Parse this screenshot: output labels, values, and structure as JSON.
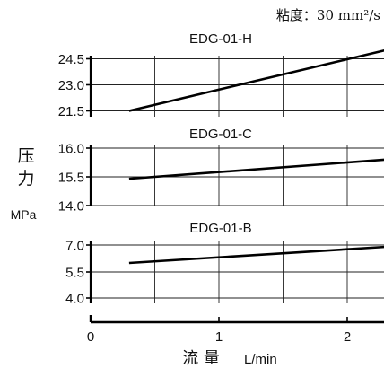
{
  "viscosity_note": "粘度：30 mm²/s",
  "y_axis_label": {
    "text": "压力",
    "unit": "MPa"
  },
  "x_axis_label": {
    "text": "流  量",
    "unit": "L/min"
  },
  "x_ticks": [
    "0",
    "1",
    "2"
  ],
  "chart_data": [
    {
      "type": "line",
      "title": "EDG-01-H",
      "ylim": [
        21.5,
        25.0
      ],
      "yticks": [
        21.5,
        23.0,
        24.5
      ],
      "ytick_labels": [
        "21.5",
        "23.0",
        "24.5"
      ],
      "xlim": [
        0,
        2.3
      ],
      "grid": true,
      "series": [
        {
          "x": [
            0.3,
            2.3
          ],
          "y": [
            21.5,
            25.0
          ]
        }
      ]
    },
    {
      "type": "line",
      "title": "EDG-01-C",
      "ylim": [
        14.0,
        16.0
      ],
      "yticks": [
        14.0,
        15.5,
        16.0
      ],
      "ytick_labels": [
        "14.0",
        "15.5",
        "16.0"
      ],
      "xlim": [
        0,
        2.3
      ],
      "grid": true,
      "series": [
        {
          "x": [
            0.3,
            2.3
          ],
          "y": [
            15.4,
            15.8
          ]
        }
      ]
    },
    {
      "type": "line",
      "title": "EDG-01-B",
      "ylim": [
        4.0,
        7.0
      ],
      "yticks": [
        4.0,
        5.5,
        7.0
      ],
      "ytick_labels": [
        "4.0",
        "5.5",
        "7.0"
      ],
      "xlim": [
        0,
        2.3
      ],
      "xticks": [
        0,
        1,
        2
      ],
      "grid": true,
      "series": [
        {
          "x": [
            0.3,
            2.3
          ],
          "y": [
            6.0,
            6.9
          ]
        }
      ]
    }
  ]
}
